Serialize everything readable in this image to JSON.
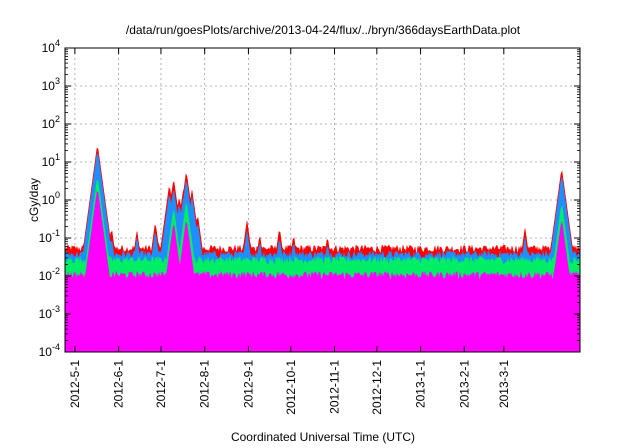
{
  "chart_data": {
    "type": "line",
    "title": "/data/run/goesPlots/archive/2013-04-24/flux/../bryn/366daysEarthData.plot",
    "xlabel": "Coordinated Universal Time (UTC)",
    "ylabel": "cGy/day",
    "yscale": "log",
    "ylim": [
      0.0001,
      10000
    ],
    "xlim": [
      "2012-04-24",
      "2013-04-24"
    ],
    "grid": true,
    "legend": "none",
    "y_ticks": [
      {
        "value": 0.0001,
        "base": "10",
        "exp": "-4"
      },
      {
        "value": 0.001,
        "base": "10",
        "exp": "-3"
      },
      {
        "value": 0.01,
        "base": "10",
        "exp": "-2"
      },
      {
        "value": 0.1,
        "base": "10",
        "exp": "-1"
      },
      {
        "value": 1,
        "base": "10",
        "exp": "0"
      },
      {
        "value": 10,
        "base": "10",
        "exp": "1"
      },
      {
        "value": 100,
        "base": "10",
        "exp": "2"
      },
      {
        "value": 1000,
        "base": "10",
        "exp": "3"
      },
      {
        "value": 10000,
        "base": "10",
        "exp": "4"
      }
    ],
    "x_ticks": [
      {
        "date": "2012-05-01",
        "label": "2012-5-1"
      },
      {
        "date": "2012-06-01",
        "label": "2012-6-1"
      },
      {
        "date": "2012-07-01",
        "label": "2012-7-1"
      },
      {
        "date": "2012-08-01",
        "label": "2012-8-1"
      },
      {
        "date": "2012-09-01",
        "label": "2012-9-1"
      },
      {
        "date": "2012-10-01",
        "label": "2012-10-1"
      },
      {
        "date": "2012-11-01",
        "label": "2012-11-1"
      },
      {
        "date": "2012-12-01",
        "label": "2012-12-1"
      },
      {
        "date": "2013-01-01",
        "label": "2013-1-1"
      },
      {
        "date": "2013-02-01",
        "label": "2013-2-1"
      },
      {
        "date": "2013-03-01",
        "label": "2013-3-1"
      }
    ],
    "series": [
      {
        "color": "#ff0000",
        "baseline": 0.05,
        "peaks": [
          [
            "2012-05-17",
            28
          ],
          [
            "2012-05-27",
            0.18
          ],
          [
            "2012-06-14",
            0.15
          ],
          [
            "2012-06-27",
            0.25
          ],
          [
            "2012-07-07",
            2.5
          ],
          [
            "2012-07-10",
            3.5
          ],
          [
            "2012-07-14",
            1.2
          ],
          [
            "2012-07-17",
            2
          ],
          [
            "2012-07-19",
            5.5
          ],
          [
            "2012-07-23",
            1.8
          ],
          [
            "2012-07-27",
            0.4
          ],
          [
            "2012-08-31",
            0.28
          ],
          [
            "2012-09-09",
            0.12
          ],
          [
            "2012-09-23",
            0.18
          ],
          [
            "2012-10-03",
            0.12
          ],
          [
            "2012-10-27",
            0.11
          ],
          [
            "2013-03-16",
            0.18
          ],
          [
            "2013-04-11",
            6.5
          ],
          [
            "2013-04-17",
            0.14
          ]
        ]
      },
      {
        "color": "#1f8fff",
        "baseline": 0.035,
        "peaks": [
          [
            "2012-05-17",
            20
          ],
          [
            "2012-05-27",
            0.1
          ],
          [
            "2012-06-14",
            0.1
          ],
          [
            "2012-06-27",
            0.15
          ],
          [
            "2012-07-07",
            1.5
          ],
          [
            "2012-07-10",
            2
          ],
          [
            "2012-07-14",
            0.8
          ],
          [
            "2012-07-17",
            1.2
          ],
          [
            "2012-07-19",
            3.5
          ],
          [
            "2012-07-23",
            1.2
          ],
          [
            "2012-07-27",
            0.25
          ],
          [
            "2012-08-31",
            0.15
          ],
          [
            "2012-09-09",
            0.08
          ],
          [
            "2012-09-23",
            0.1
          ],
          [
            "2012-10-03",
            0.08
          ],
          [
            "2012-10-27",
            0.07
          ],
          [
            "2013-03-16",
            0.1
          ],
          [
            "2013-04-11",
            4.5
          ],
          [
            "2013-04-17",
            0.09
          ]
        ]
      },
      {
        "color": "#00ee66",
        "baseline": 0.025,
        "peaks": [
          [
            "2012-05-17",
            4
          ],
          [
            "2012-07-10",
            0.6
          ],
          [
            "2012-07-19",
            0.9
          ],
          [
            "2013-04-11",
            0.8
          ]
        ]
      },
      {
        "color": "#ff00ff",
        "baseline": 0.01,
        "peaks": [
          [
            "2012-05-17",
            2
          ],
          [
            "2012-07-10",
            0.25
          ],
          [
            "2012-07-19",
            0.3
          ],
          [
            "2013-04-11",
            0.3
          ]
        ]
      }
    ]
  }
}
